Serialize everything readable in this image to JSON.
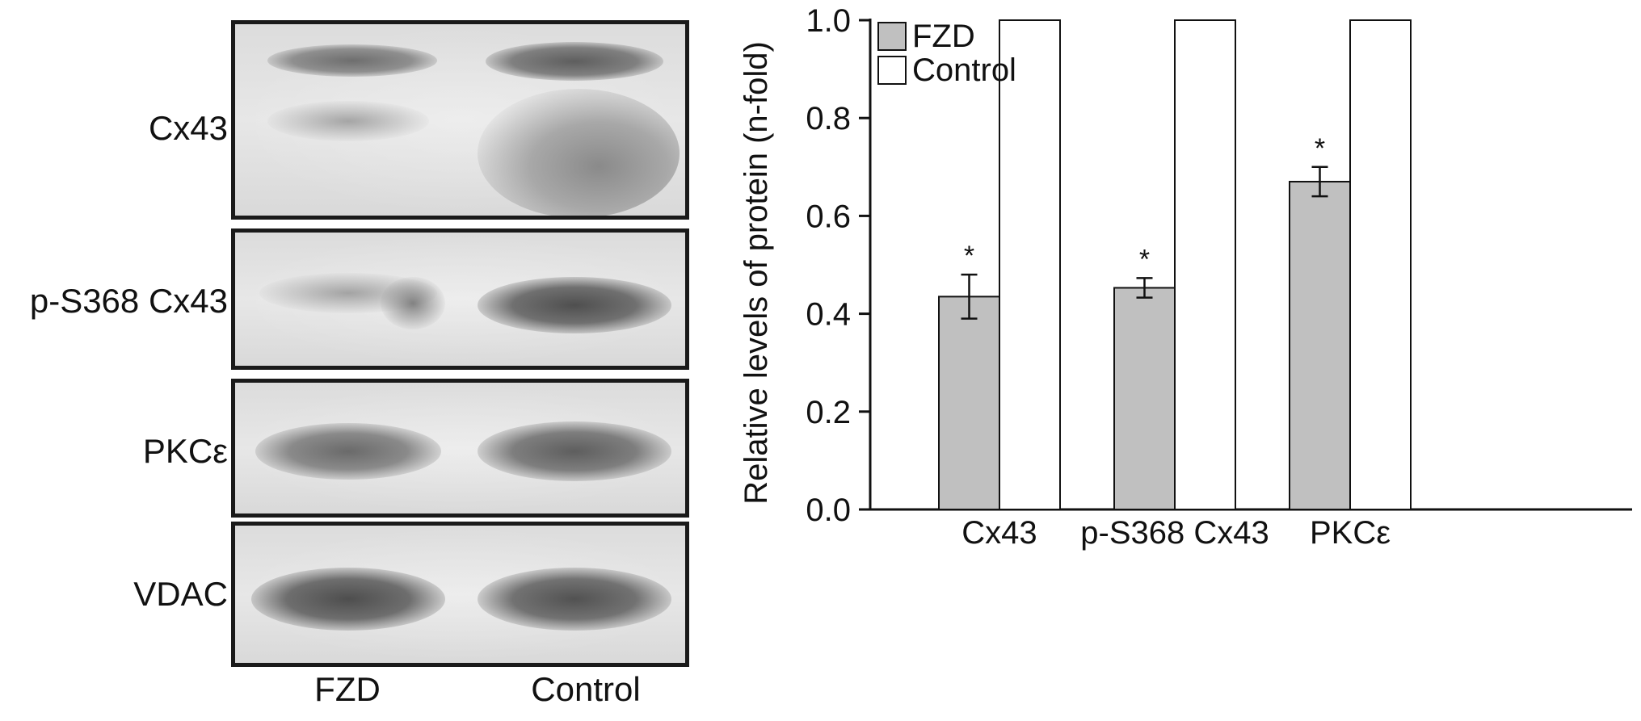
{
  "blot": {
    "rows": [
      {
        "label": "Cx43"
      },
      {
        "label": "p-S368 Cx43"
      },
      {
        "label": "PKCε"
      },
      {
        "label": "VDAC"
      }
    ],
    "lanes": [
      "FZD",
      "Control"
    ]
  },
  "chart_data": {
    "type": "bar",
    "categories": [
      "Cx43",
      "p-S368 Cx43",
      "PKCε"
    ],
    "series": [
      {
        "name": "FZD",
        "values": [
          0.435,
          0.453,
          0.67
        ],
        "errors": [
          0.045,
          0.02,
          0.03
        ],
        "color": "#c0c0c0"
      },
      {
        "name": "Control",
        "values": [
          1.0,
          1.0,
          1.0
        ],
        "color": "#ffffff"
      }
    ],
    "significance": [
      "*",
      "*",
      "*"
    ],
    "ylabel": "Relative levels of protein (n-fold)",
    "xlabel": "",
    "ylim": [
      0,
      1.0
    ],
    "yticks": [
      "0.0",
      "0.2",
      "0.4",
      "0.6",
      "0.8",
      "1.0"
    ],
    "legend_position": "top-left",
    "grid": false
  }
}
